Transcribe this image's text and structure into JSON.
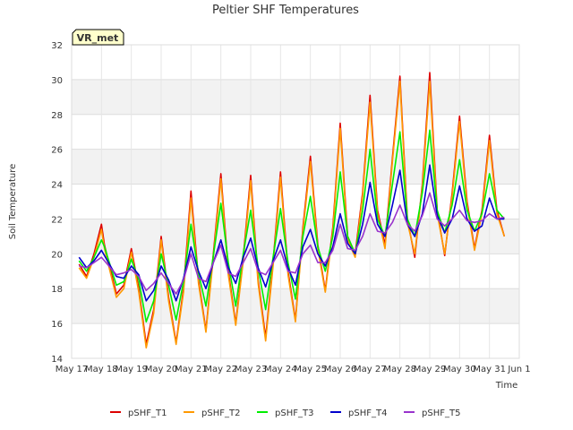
{
  "chart_data": {
    "type": "line",
    "title": "Peltier SHF Temperatures",
    "xlabel": "Time",
    "ylabel": "Soil Temperature",
    "badge": "VR_met",
    "ylim": [
      14,
      32
    ],
    "yticks": [
      14,
      16,
      18,
      20,
      22,
      24,
      26,
      28,
      30,
      32
    ],
    "xlim": [
      0,
      15
    ],
    "xticks": [
      {
        "x": 0,
        "label": "May 17"
      },
      {
        "x": 1,
        "label": "May 18"
      },
      {
        "x": 2,
        "label": "May 19"
      },
      {
        "x": 3,
        "label": "May 20"
      },
      {
        "x": 4,
        "label": "May 21"
      },
      {
        "x": 5,
        "label": "May 22"
      },
      {
        "x": 6,
        "label": "May 23"
      },
      {
        "x": 7,
        "label": "May 24"
      },
      {
        "x": 8,
        "label": "May 25"
      },
      {
        "x": 9,
        "label": "May 26"
      },
      {
        "x": 10,
        "label": "May 27"
      },
      {
        "x": 11,
        "label": "May 28"
      },
      {
        "x": 12,
        "label": "May 29"
      },
      {
        "x": 13,
        "label": "May 30"
      },
      {
        "x": 14,
        "label": "May 31"
      },
      {
        "x": 15,
        "label": "Jun 1"
      }
    ],
    "x_unit": "days since May 17",
    "series": [
      {
        "name": "pSHF_T1",
        "color": "#dd0000",
        "x": [
          0.25,
          0.5,
          0.75,
          1.0,
          1.1,
          1.5,
          1.75,
          2.0,
          2.25,
          2.5,
          2.75,
          3.0,
          3.25,
          3.5,
          3.75,
          4.0,
          4.25,
          4.5,
          4.75,
          5.0,
          5.25,
          5.5,
          5.75,
          6.0,
          6.25,
          6.5,
          6.75,
          7.0,
          7.25,
          7.5,
          7.75,
          8.0,
          8.25,
          8.5,
          8.75,
          9.0,
          9.25,
          9.5,
          9.75,
          10.0,
          10.25,
          10.5,
          10.75,
          11.0,
          11.25,
          11.5,
          11.75,
          12.0,
          12.25,
          12.5,
          12.75,
          13.0,
          13.25,
          13.5,
          13.75,
          14.0,
          14.25,
          14.5,
          14.75
        ],
        "y": [
          19.4,
          18.7,
          20.0,
          21.7,
          20.5,
          17.7,
          18.2,
          20.3,
          18.0,
          14.8,
          16.8,
          21.0,
          17.5,
          14.9,
          18.0,
          23.6,
          18.5,
          15.6,
          20.0,
          24.6,
          19.0,
          16.0,
          19.8,
          24.5,
          18.5,
          15.2,
          19.5,
          24.7,
          19.0,
          16.2,
          21.5,
          25.6,
          20.5,
          17.9,
          21.5,
          27.5,
          21.0,
          20.0,
          23.5,
          29.1,
          22.5,
          20.5,
          25.5,
          30.2,
          22.0,
          19.8,
          24.0,
          30.4,
          22.5,
          19.9,
          23.5,
          27.9,
          23.0,
          20.3,
          22.5,
          26.8,
          22.5,
          21.0,
          null
        ]
      },
      {
        "name": "pSHF_T2",
        "color": "#ff9900",
        "x": [
          0.25,
          0.5,
          0.75,
          1.0,
          1.1,
          1.5,
          1.75,
          2.0,
          2.25,
          2.5,
          2.75,
          3.0,
          3.25,
          3.5,
          3.75,
          4.0,
          4.25,
          4.5,
          4.75,
          5.0,
          5.25,
          5.5,
          5.75,
          6.0,
          6.25,
          6.5,
          6.75,
          7.0,
          7.25,
          7.5,
          7.75,
          8.0,
          8.25,
          8.5,
          8.75,
          9.0,
          9.25,
          9.5,
          9.75,
          10.0,
          10.25,
          10.5,
          10.75,
          11.0,
          11.25,
          11.5,
          11.75,
          12.0,
          12.25,
          12.5,
          12.75,
          13.0,
          13.25,
          13.5,
          13.75,
          14.0,
          14.25,
          14.5,
          14.75
        ],
        "y": [
          19.2,
          18.6,
          19.8,
          21.4,
          20.3,
          17.5,
          18.0,
          20.1,
          17.8,
          14.6,
          16.6,
          20.8,
          17.3,
          14.8,
          17.8,
          23.2,
          18.3,
          15.5,
          19.8,
          24.3,
          18.8,
          15.9,
          19.6,
          24.2,
          18.3,
          15.0,
          19.3,
          24.4,
          18.8,
          16.1,
          21.3,
          25.3,
          20.3,
          17.8,
          21.3,
          27.2,
          20.8,
          19.8,
          23.3,
          28.7,
          22.3,
          20.3,
          25.3,
          29.9,
          21.8,
          20.0,
          23.8,
          29.9,
          22.3,
          20.0,
          23.3,
          27.6,
          22.8,
          20.2,
          22.3,
          26.5,
          22.3,
          21.0,
          null
        ]
      },
      {
        "name": "pSHF_T3",
        "color": "#00ee00",
        "x": [
          0.25,
          0.5,
          0.75,
          1.0,
          1.1,
          1.5,
          1.75,
          2.0,
          2.25,
          2.5,
          2.75,
          3.0,
          3.25,
          3.5,
          3.75,
          4.0,
          4.25,
          4.5,
          4.75,
          5.0,
          5.25,
          5.5,
          5.75,
          6.0,
          6.25,
          6.5,
          6.75,
          7.0,
          7.25,
          7.5,
          7.75,
          8.0,
          8.25,
          8.5,
          8.75,
          9.0,
          9.25,
          9.5,
          9.75,
          10.0,
          10.25,
          10.5,
          10.75,
          11.0,
          11.25,
          11.5,
          11.75,
          12.0,
          12.25,
          12.5,
          12.75,
          13.0,
          13.25,
          13.5,
          13.75,
          14.0,
          14.25,
          14.5,
          14.75
        ],
        "y": [
          19.6,
          19.0,
          19.8,
          20.8,
          20.4,
          18.2,
          18.4,
          19.7,
          18.5,
          16.1,
          17.3,
          20.0,
          18.2,
          16.2,
          18.4,
          21.7,
          18.9,
          17.0,
          19.9,
          22.9,
          19.5,
          17.0,
          20.0,
          22.5,
          19.2,
          16.8,
          19.8,
          22.6,
          19.5,
          17.4,
          21.0,
          23.3,
          20.4,
          19.0,
          21.0,
          24.7,
          21.0,
          20.0,
          22.5,
          26.0,
          22.0,
          21.0,
          24.0,
          27.0,
          22.0,
          21.0,
          23.5,
          27.1,
          22.5,
          21.2,
          22.8,
          25.4,
          22.5,
          21.3,
          22.3,
          24.6,
          22.5,
          22.0,
          null
        ]
      },
      {
        "name": "pSHF_T4",
        "color": "#0000cc",
        "x": [
          0.25,
          0.5,
          0.75,
          1.0,
          1.1,
          1.5,
          1.75,
          2.0,
          2.25,
          2.5,
          2.75,
          3.0,
          3.25,
          3.5,
          3.75,
          4.0,
          4.25,
          4.5,
          4.75,
          5.0,
          5.25,
          5.5,
          5.75,
          6.0,
          6.25,
          6.5,
          6.75,
          7.0,
          7.25,
          7.5,
          7.75,
          8.0,
          8.25,
          8.5,
          8.75,
          9.0,
          9.25,
          9.5,
          9.75,
          10.0,
          10.25,
          10.5,
          10.75,
          11.0,
          11.25,
          11.5,
          11.75,
          12.0,
          12.25,
          12.5,
          12.75,
          13.0,
          13.25,
          13.5,
          13.75,
          14.0,
          14.25,
          14.5,
          14.75
        ],
        "y": [
          19.8,
          19.2,
          19.6,
          20.2,
          19.9,
          18.7,
          18.6,
          19.3,
          18.8,
          17.3,
          17.9,
          19.3,
          18.5,
          17.3,
          18.6,
          20.4,
          19.0,
          18.0,
          19.5,
          20.8,
          19.2,
          18.3,
          19.8,
          20.9,
          19.2,
          18.1,
          19.6,
          20.8,
          19.2,
          18.2,
          20.4,
          21.4,
          20.0,
          19.3,
          20.4,
          22.3,
          20.6,
          20.0,
          21.7,
          24.1,
          21.7,
          21.0,
          22.8,
          24.8,
          21.7,
          21.0,
          22.3,
          25.1,
          22.2,
          21.2,
          22.0,
          23.9,
          22.0,
          21.3,
          21.6,
          23.2,
          22.0,
          22.0,
          null
        ]
      },
      {
        "name": "pSHF_T5",
        "color": "#9933cc",
        "x": [
          0.25,
          0.5,
          0.75,
          1.0,
          1.1,
          1.5,
          1.75,
          2.0,
          2.25,
          2.5,
          2.75,
          3.0,
          3.25,
          3.5,
          3.75,
          4.0,
          4.25,
          4.5,
          4.75,
          5.0,
          5.25,
          5.5,
          5.75,
          6.0,
          6.25,
          6.5,
          6.75,
          7.0,
          7.25,
          7.5,
          7.75,
          8.0,
          8.25,
          8.5,
          8.75,
          9.0,
          9.25,
          9.5,
          9.75,
          10.0,
          10.25,
          10.5,
          10.75,
          11.0,
          11.25,
          11.5,
          11.75,
          12.0,
          12.25,
          12.5,
          12.75,
          13.0,
          13.25,
          13.5,
          13.75,
          14.0,
          14.25,
          14.5,
          14.75
        ],
        "y": [
          19.3,
          19.2,
          19.5,
          19.8,
          19.6,
          18.8,
          18.9,
          19.1,
          18.7,
          17.9,
          18.3,
          18.9,
          18.3,
          17.7,
          18.5,
          20.0,
          18.6,
          18.4,
          19.5,
          20.5,
          18.9,
          18.7,
          19.5,
          20.3,
          19.0,
          18.8,
          19.5,
          20.2,
          19.0,
          18.9,
          20.0,
          20.5,
          19.5,
          19.5,
          20.2,
          21.7,
          20.3,
          20.2,
          21.0,
          22.3,
          21.3,
          21.2,
          21.8,
          22.8,
          21.7,
          21.3,
          22.2,
          23.5,
          22.0,
          21.6,
          22.0,
          22.5,
          21.9,
          21.8,
          21.9,
          22.3,
          22.0,
          22.1,
          null
        ]
      }
    ]
  }
}
